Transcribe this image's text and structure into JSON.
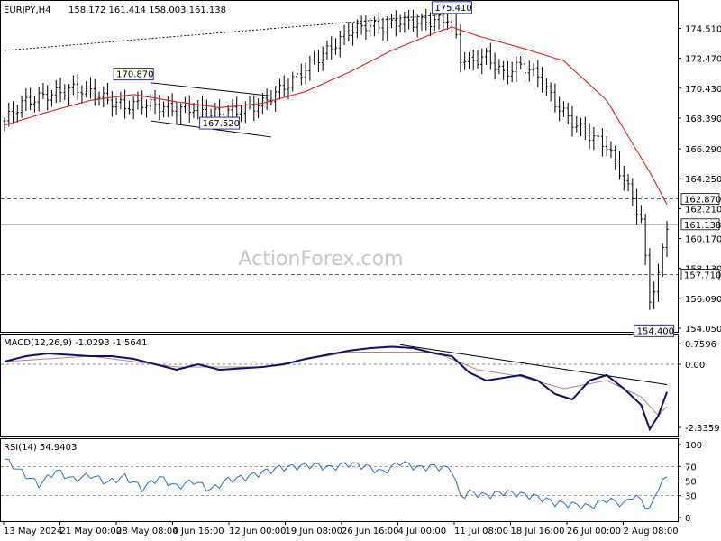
{
  "header": {
    "symbol": "EURJPY,H4",
    "ohlc": "158.172 161.414 158.003 161.138"
  },
  "watermark": "ActionForex.com",
  "colors": {
    "candle": "#000000",
    "ma": "#e02020",
    "macd_main": "#10106e",
    "macd_signal": "#c08080",
    "rsi": "#2a6fd6",
    "trendline": "#000000",
    "level_line": "#333333",
    "label_border": "#1a1a8c"
  },
  "chart_data": [
    {
      "type": "candlestick",
      "panel": "price",
      "ylim": [
        154.05,
        176.2
      ],
      "yticks": [
        "174.510",
        "172.470",
        "170.430",
        "168.390",
        "166.290",
        "164.250",
        "162.210",
        "160.170",
        "158.130",
        "156.090",
        "154.050"
      ],
      "price_tag": "161.138",
      "levels": [
        {
          "value": 162.87,
          "label": "162.870",
          "style": "dashed"
        },
        {
          "value": 161.138,
          "label": "161.138",
          "style": "solid"
        },
        {
          "value": 157.71,
          "label": "157.710",
          "style": "dashed"
        }
      ],
      "annotations": [
        {
          "label": "175.410",
          "x": 104,
          "y": 175.41
        },
        {
          "label": "170.870",
          "x": 30,
          "y": 170.87
        },
        {
          "label": "167.520",
          "x": 50,
          "y": 167.52
        },
        {
          "label": "154.400",
          "x": 151,
          "y": 154.4
        }
      ],
      "series": [
        {
          "name": "close",
          "x_index": [
            0,
            4,
            8,
            12,
            16,
            20,
            24,
            28,
            32,
            36,
            40,
            44,
            48,
            52,
            56,
            60,
            64,
            68,
            72,
            76,
            80,
            84,
            88,
            92,
            96,
            100,
            104,
            106,
            108,
            112,
            116,
            120,
            124,
            128,
            132,
            136,
            140,
            144,
            146,
            148,
            150,
            152,
            154
          ],
          "values": [
            168.2,
            169.4,
            169.8,
            170.1,
            170.4,
            170.2,
            169.6,
            169.2,
            169.4,
            169.2,
            168.9,
            169.1,
            168.6,
            168.8,
            169.0,
            169.4,
            170.3,
            171.2,
            172.3,
            173.2,
            174.3,
            174.7,
            174.6,
            175.0,
            174.9,
            175.0,
            175.3,
            172.5,
            172.2,
            172.6,
            171.4,
            172.0,
            171.3,
            169.4,
            168.1,
            167.2,
            166.5,
            164.2,
            162.9,
            161.4,
            156.0,
            157.6,
            161.1
          ]
        },
        {
          "name": "MA",
          "x_index": [
            0,
            10,
            20,
            30,
            40,
            50,
            60,
            70,
            80,
            90,
            100,
            104,
            110,
            120,
            130,
            140,
            150,
            154
          ],
          "values": [
            167.9,
            168.8,
            169.6,
            170.0,
            169.5,
            169.1,
            169.4,
            170.2,
            171.5,
            173.0,
            174.2,
            174.6,
            174.0,
            173.2,
            172.3,
            169.6,
            164.7,
            162.5
          ]
        }
      ],
      "trendlines": [
        {
          "from": [
            0,
            173.0
          ],
          "to": [
            104,
            175.5
          ],
          "style": "dotted"
        },
        {
          "from": [
            34,
            170.8
          ],
          "to": [
            62,
            169.9
          ],
          "style": "solid"
        },
        {
          "from": [
            34,
            168.2
          ],
          "to": [
            62,
            167.1
          ],
          "style": "solid"
        }
      ]
    },
    {
      "type": "line",
      "panel": "macd",
      "label": "MACD(12,26,9) -1.0293 -1.5641",
      "ylim": [
        -2.6,
        1.0
      ],
      "yticks": [
        "0.7596",
        "0.00",
        "-2.3359"
      ],
      "series": [
        {
          "name": "MACD main",
          "x_index": [
            0,
            5,
            10,
            15,
            20,
            25,
            30,
            35,
            40,
            45,
            50,
            55,
            60,
            65,
            70,
            75,
            80,
            85,
            90,
            95,
            100,
            104,
            108,
            112,
            116,
            120,
            124,
            128,
            132,
            136,
            140,
            144,
            148,
            150,
            152,
            154
          ],
          "values": [
            0.1,
            0.3,
            0.4,
            0.35,
            0.3,
            0.3,
            0.2,
            0.0,
            -0.2,
            0.0,
            -0.2,
            -0.15,
            -0.1,
            0.0,
            0.2,
            0.35,
            0.5,
            0.6,
            0.65,
            0.6,
            0.4,
            0.3,
            -0.3,
            -0.6,
            -0.5,
            -0.4,
            -0.6,
            -1.1,
            -1.3,
            -0.6,
            -0.4,
            -0.9,
            -1.5,
            -2.4,
            -1.9,
            -1.03
          ]
        },
        {
          "name": "Signal",
          "x_index": [
            0,
            20,
            40,
            60,
            80,
            100,
            110,
            120,
            130,
            140,
            148,
            152,
            154
          ],
          "values": [
            0.1,
            0.3,
            -0.1,
            -0.1,
            0.45,
            0.45,
            -0.2,
            -0.45,
            -0.9,
            -0.6,
            -1.2,
            -1.9,
            -1.56
          ]
        }
      ],
      "trendline": {
        "from": [
          92,
          0.72
        ],
        "to": [
          154,
          -0.75
        ],
        "style": "solid"
      }
    },
    {
      "type": "line",
      "panel": "rsi",
      "label": "RSI(14) 54.9403",
      "ylim": [
        0,
        100
      ],
      "yticks": [
        "100",
        "70",
        "50",
        "30",
        "0"
      ],
      "levels": [
        70,
        30
      ],
      "series": [
        {
          "name": "RSI",
          "x_index": [
            0,
            4,
            8,
            12,
            16,
            20,
            24,
            28,
            32,
            36,
            40,
            44,
            48,
            52,
            56,
            60,
            64,
            68,
            72,
            76,
            80,
            84,
            88,
            92,
            96,
            100,
            104,
            106,
            108,
            112,
            116,
            120,
            124,
            128,
            132,
            136,
            140,
            144,
            146,
            148,
            150,
            152,
            154
          ],
          "values": [
            80,
            62,
            45,
            64,
            52,
            58,
            48,
            56,
            40,
            55,
            42,
            50,
            38,
            52,
            55,
            62,
            68,
            70,
            72,
            68,
            74,
            70,
            62,
            76,
            68,
            70,
            66,
            28,
            35,
            30,
            35,
            32,
            28,
            20,
            18,
            15,
            25,
            18,
            30,
            24,
            10,
            42,
            55
          ]
        }
      ]
    }
  ],
  "x_axis": {
    "labels": [
      "13 May 2024",
      "21 May 00:00",
      "28 May 08:00",
      "4 Jun 16:00",
      "12 Jun 00:00",
      "19 Jun 08:00",
      "26 Jun 16:00",
      "4 Jul 00:00",
      "11 Jul 08:00",
      "18 Jul 16:00",
      "26 Jul 00:00",
      "2 Aug 08:00"
    ]
  }
}
